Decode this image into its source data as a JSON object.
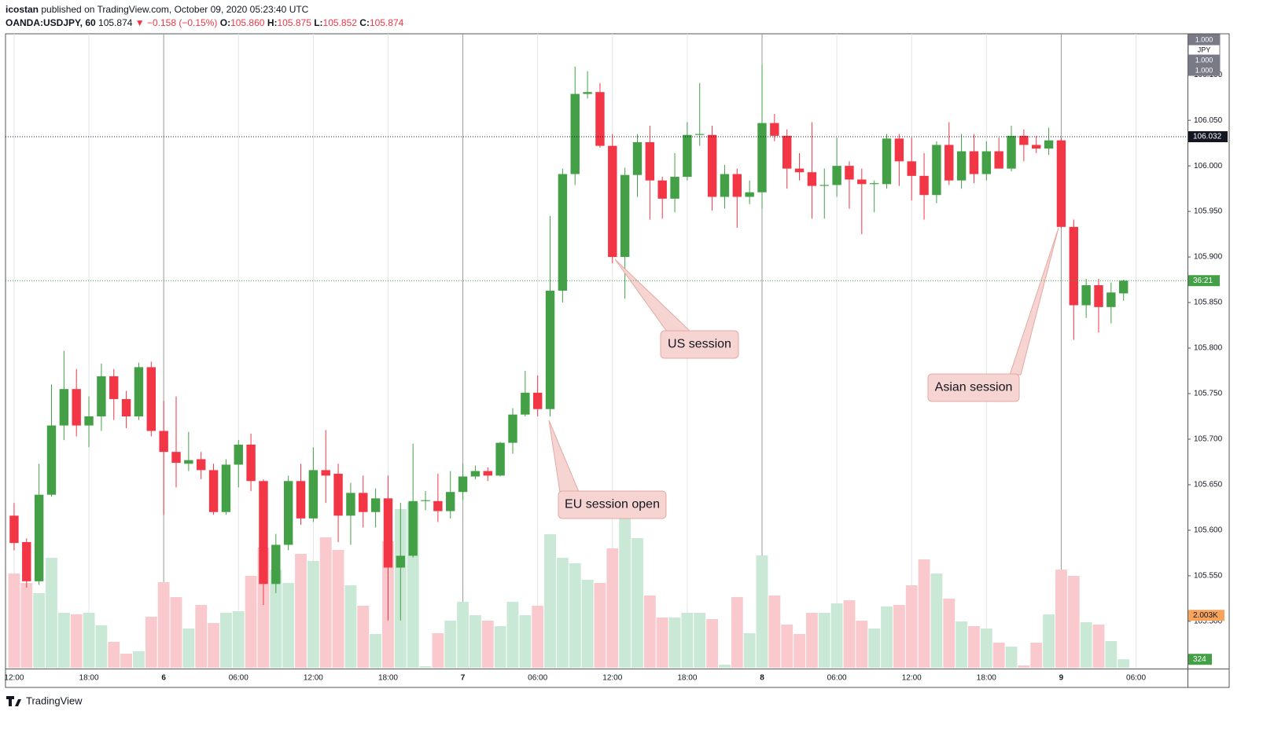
{
  "header": {
    "author": "icostan",
    "published": "published on TradingView.com, October 09, 2020 05:23:40 UTC",
    "symbol": "OANDA:USDJPY, 60",
    "last": "105.874",
    "change": "▼ −0.158 (−0.15%)",
    "ohlc": [
      {
        "label": "O:",
        "value": "105.860"
      },
      {
        "label": "H:",
        "value": "105.875"
      },
      {
        "label": "L:",
        "value": "105.852"
      },
      {
        "label": "C:",
        "value": "105.874"
      }
    ]
  },
  "footer": {
    "brand": "TradingView"
  },
  "chart_data": {
    "type": "candlestick",
    "up_color": "#43a047",
    "down_color": "#f23645",
    "up_volume_color": "#c9e8d5",
    "down_volume_color": "#f9c9ce",
    "xlim": [
      -0.69,
      94.13
    ],
    "xticks": [
      {
        "value": 0,
        "label": "12:00"
      },
      {
        "value": 6,
        "label": "18:00"
      },
      {
        "value": 12,
        "label": "6"
      },
      {
        "value": 18,
        "label": "06:00"
      },
      {
        "value": 24,
        "label": "12:00"
      },
      {
        "value": 30,
        "label": "18:00"
      },
      {
        "value": 36,
        "label": "7"
      },
      {
        "value": 42,
        "label": "06:00"
      },
      {
        "value": 48,
        "label": "12:00"
      },
      {
        "value": 54,
        "label": "18:00"
      },
      {
        "value": 60,
        "label": "8"
      },
      {
        "value": 66,
        "label": "06:00"
      },
      {
        "value": 72,
        "label": "12:00"
      },
      {
        "value": 78,
        "label": "18:00"
      },
      {
        "value": 84,
        "label": "9"
      },
      {
        "value": 90,
        "label": "06:00"
      }
    ],
    "ylim": [
      105.449,
      106.145
    ],
    "yticks": [
      {
        "value": 106.1,
        "label": "106.100"
      },
      {
        "value": 106.05,
        "label": "106.050"
      },
      {
        "value": 106.0,
        "label": "106.000"
      },
      {
        "value": 105.95,
        "label": "105.950"
      },
      {
        "value": 105.9,
        "label": "105.900"
      },
      {
        "value": 105.85,
        "label": "105.850"
      },
      {
        "value": 105.8,
        "label": "105.800"
      },
      {
        "value": 105.75,
        "label": "105.750"
      },
      {
        "value": 105.7,
        "label": "105.700"
      },
      {
        "value": 105.65,
        "label": "105.650"
      },
      {
        "value": 105.6,
        "label": "105.600"
      },
      {
        "value": 105.55,
        "label": "105.550"
      },
      {
        "value": 105.5,
        "label": "105.500"
      }
    ],
    "volume_lim": [
      0,
      24210
    ],
    "open": [
      105.616,
      105.587,
      105.544,
      105.639,
      105.715,
      105.755,
      105.715,
      105.725,
      105.769,
      105.744,
      105.725,
      105.779,
      105.709,
      105.686,
      105.673,
      105.678,
      105.666,
      105.62,
      105.672,
      105.694,
      105.654,
      105.541,
      105.584,
      105.654,
      105.613,
      105.666,
      105.662,
      105.616,
      105.641,
      105.62,
      105.635,
      105.559,
      105.572,
      105.632,
      105.632,
      105.621,
      105.642,
      105.659,
      105.665,
      105.66,
      105.696,
      105.727,
      105.751,
      105.733,
      105.863,
      105.991,
      106.079,
      106.081,
      106.022,
      105.9,
      105.99,
      106.026,
      105.984,
      105.964,
      105.988,
      106.034,
      106.034,
      105.966,
      105.991,
      105.966,
      105.971,
      106.047,
      106.033,
      105.997,
      105.993,
      105.978,
      105.979,
      106.0,
      105.985,
      105.98,
      105.98,
      106.03,
      106.005,
      105.989,
      105.968,
      106.023,
      105.984,
      106.016,
      105.991,
      106.016,
      105.997,
      106.033,
      106.023,
      106.019,
      106.028,
      105.933,
      105.847,
      105.869,
      105.845,
      105.86
    ],
    "high": [
      105.63,
      105.591,
      105.673,
      105.76,
      105.797,
      105.777,
      105.747,
      105.783,
      105.777,
      105.753,
      105.784,
      105.785,
      105.742,
      105.747,
      105.708,
      105.686,
      105.673,
      105.678,
      105.699,
      105.706,
      105.656,
      105.596,
      105.66,
      105.673,
      105.691,
      105.71,
      105.673,
      105.652,
      105.66,
      105.646,
      105.66,
      105.63,
      105.695,
      105.643,
      105.662,
      105.665,
      105.673,
      105.671,
      105.669,
      105.697,
      105.734,
      105.775,
      105.77,
      105.945,
      105.997,
      106.109,
      106.104,
      106.091,
      106.035,
      105.998,
      106.035,
      106.044,
      105.988,
      106.014,
      106.048,
      106.091,
      106.044,
      106.001,
      105.997,
      105.984,
      106.111,
      106.057,
      106.04,
      106.014,
      106.048,
      105.997,
      106.031,
      106.005,
      105.997,
      105.984,
      106.035,
      106.035,
      106.031,
      106.014,
      106.027,
      106.048,
      106.035,
      106.035,
      106.027,
      106.031,
      106.044,
      106.04,
      106.033,
      106.042,
      106.031,
      105.941,
      105.876,
      105.876,
      105.872,
      105.875
    ],
    "low": [
      105.578,
      105.537,
      105.54,
      105.637,
      105.699,
      105.703,
      105.691,
      105.709,
      105.721,
      105.712,
      105.721,
      105.703,
      105.617,
      105.647,
      105.665,
      105.656,
      105.617,
      105.617,
      105.647,
      105.643,
      105.518,
      105.531,
      105.578,
      105.606,
      105.609,
      105.63,
      105.587,
      105.584,
      105.603,
      105.603,
      105.501,
      105.501,
      105.57,
      105.622,
      105.609,
      105.613,
      105.633,
      105.656,
      105.654,
      105.659,
      105.684,
      105.725,
      105.725,
      105.725,
      105.85,
      105.979,
      106.074,
      106.02,
      105.893,
      105.854,
      105.966,
      105.941,
      105.942,
      105.949,
      105.984,
      106.022,
      105.951,
      105.953,
      105.932,
      105.958,
      105.953,
      106.027,
      105.975,
      105.984,
      105.942,
      105.942,
      105.966,
      105.953,
      105.925,
      105.949,
      105.975,
      105.978,
      105.962,
      105.941,
      105.959,
      105.979,
      105.975,
      105.981,
      105.984,
      105.997,
      105.994,
      106.005,
      106.014,
      106.012,
      105.932,
      105.809,
      105.833,
      105.817,
      105.827,
      105.852
    ],
    "close": [
      105.586,
      105.544,
      105.639,
      105.715,
      105.755,
      105.715,
      105.725,
      105.769,
      105.744,
      105.725,
      105.779,
      105.709,
      105.686,
      105.674,
      105.677,
      105.666,
      105.62,
      105.672,
      105.694,
      105.654,
      105.541,
      105.584,
      105.654,
      105.613,
      105.666,
      105.66,
      105.616,
      105.641,
      105.62,
      105.635,
      105.559,
      105.572,
      105.632,
      105.633,
      105.621,
      105.642,
      105.659,
      105.665,
      105.66,
      105.696,
      105.727,
      105.751,
      105.733,
      105.863,
      105.991,
      106.079,
      106.081,
      106.022,
      105.9,
      105.99,
      106.026,
      105.984,
      105.964,
      105.988,
      106.034,
      106.035,
      105.966,
      105.991,
      105.966,
      105.971,
      106.047,
      106.033,
      105.997,
      105.993,
      105.978,
      105.979,
      106.0,
      105.985,
      105.98,
      105.981,
      106.03,
      106.005,
      105.989,
      105.968,
      106.023,
      105.984,
      106.016,
      105.991,
      106.016,
      105.997,
      106.033,
      106.023,
      106.019,
      106.028,
      105.933,
      105.847,
      105.869,
      105.845,
      105.861,
      105.874
    ],
    "volume": [
      3600,
      3240,
      2850,
      4200,
      2100,
      2040,
      2100,
      1620,
      990,
      540,
      630,
      1950,
      3270,
      2700,
      1500,
      2400,
      1710,
      2100,
      2160,
      3510,
      4590,
      3750,
      3240,
      4350,
      4080,
      4980,
      4500,
      3150,
      2370,
      1290,
      4830,
      6060,
      6300,
      60,
      1320,
      1800,
      2520,
      2010,
      1800,
      1590,
      2520,
      2010,
      2370,
      5100,
      4200,
      3990,
      3360,
      3240,
      4560,
      5700,
      4950,
      2760,
      1920,
      1920,
      2100,
      2100,
      1860,
      120,
      2700,
      1320,
      4290,
      2760,
      1650,
      1290,
      2100,
      2100,
      2460,
      2580,
      1800,
      1500,
      2340,
      2400,
      3150,
      4140,
      3600,
      2640,
      1770,
      1590,
      1500,
      960,
      810,
      90,
      960,
      2040,
      3750,
      3510,
      1740,
      1650,
      1020,
      324
    ],
    "price_line": 106.032,
    "countdown": "36:21",
    "volume_ma_last": {
      "value": 2003,
      "label": "2.003K"
    },
    "scale_box": [
      "1.000",
      "JPY",
      "1.000",
      "1.000"
    ],
    "annotations": [
      "US session",
      "Asian session",
      "EU session open"
    ]
  }
}
